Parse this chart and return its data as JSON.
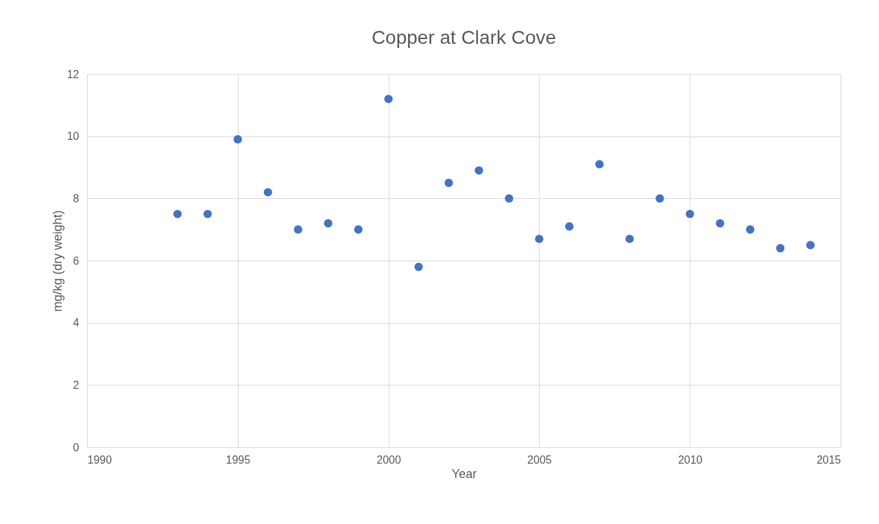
{
  "chart_data": {
    "type": "scatter",
    "title": "Copper at Clark Cove",
    "xlabel": "Year",
    "ylabel": "mg/kg (dry weight)",
    "x": [
      1993,
      1994,
      1995,
      1996,
      1997,
      1998,
      1999,
      2000,
      2001,
      2002,
      2003,
      2004,
      2005,
      2006,
      2007,
      2008,
      2009,
      2010,
      2011,
      2012,
      2013,
      2014
    ],
    "series": [
      {
        "color": "#4472c4",
        "values": [
          7.5,
          7.5,
          9.9,
          8.2,
          7.0,
          7.2,
          7.0,
          11.2,
          5.8,
          8.5,
          8.9,
          8.0,
          6.7,
          7.1,
          9.1,
          6.7,
          8.0,
          7.5,
          7.2,
          7.0,
          6.4,
          6.5
        ]
      }
    ],
    "xlim": [
      1990,
      2015
    ],
    "xticks": [
      1990,
      1995,
      2000,
      2005,
      2010,
      2015
    ],
    "ylim": [
      0,
      12
    ],
    "yticks": [
      0,
      2,
      4,
      6,
      8,
      10,
      12
    ],
    "grid": true,
    "marker": "circle",
    "legend": false
  }
}
